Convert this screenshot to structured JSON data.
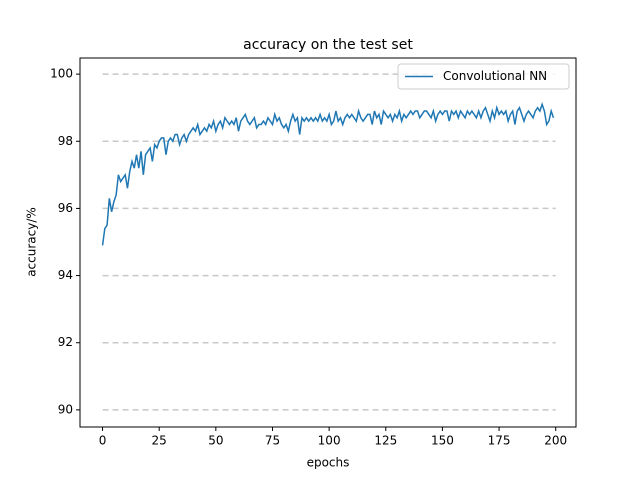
{
  "chart_data": {
    "type": "line",
    "title": "accuracy on the test set",
    "xlabel": "epochs",
    "ylabel": "accuracy/%",
    "x": [
      0,
      1,
      2,
      3,
      4,
      5,
      6,
      7,
      8,
      9,
      10,
      11,
      12,
      13,
      14,
      15,
      16,
      17,
      18,
      19,
      20,
      21,
      22,
      23,
      24,
      25,
      26,
      27,
      28,
      29,
      30,
      31,
      32,
      33,
      34,
      35,
      36,
      37,
      38,
      39,
      40,
      41,
      42,
      43,
      44,
      45,
      46,
      47,
      48,
      49,
      50,
      51,
      52,
      53,
      54,
      55,
      56,
      57,
      58,
      59,
      60,
      61,
      62,
      63,
      64,
      65,
      66,
      67,
      68,
      69,
      70,
      71,
      72,
      73,
      74,
      75,
      76,
      77,
      78,
      79,
      80,
      81,
      82,
      83,
      84,
      85,
      86,
      87,
      88,
      89,
      90,
      91,
      92,
      93,
      94,
      95,
      96,
      97,
      98,
      99,
      100,
      101,
      102,
      103,
      104,
      105,
      106,
      107,
      108,
      109,
      110,
      111,
      112,
      113,
      114,
      115,
      116,
      117,
      118,
      119,
      120,
      121,
      122,
      123,
      124,
      125,
      126,
      127,
      128,
      129,
      130,
      131,
      132,
      133,
      134,
      135,
      136,
      137,
      138,
      139,
      140,
      141,
      142,
      143,
      144,
      145,
      146,
      147,
      148,
      149,
      150,
      151,
      152,
      153,
      154,
      155,
      156,
      157,
      158,
      159,
      160,
      161,
      162,
      163,
      164,
      165,
      166,
      167,
      168,
      169,
      170,
      171,
      172,
      173,
      174,
      175,
      176,
      177,
      178,
      179,
      180,
      181,
      182,
      183,
      184,
      185,
      186,
      187,
      188,
      189,
      190,
      191,
      192,
      193,
      194,
      195,
      196,
      197,
      198,
      199
    ],
    "series": [
      {
        "name": "Convolutional NN",
        "color": "#1f77b4",
        "values": [
          94.9,
          95.4,
          95.5,
          96.3,
          95.9,
          96.2,
          96.4,
          97.0,
          96.8,
          96.9,
          97.0,
          96.6,
          97.1,
          97.4,
          97.2,
          97.6,
          97.2,
          97.7,
          97.0,
          97.6,
          97.7,
          97.8,
          97.4,
          97.9,
          97.8,
          98.0,
          98.1,
          98.1,
          97.6,
          98.0,
          98.1,
          98.0,
          98.2,
          98.2,
          97.9,
          98.1,
          98.2,
          98.0,
          98.2,
          98.3,
          98.4,
          98.3,
          98.5,
          98.2,
          98.3,
          98.4,
          98.3,
          98.5,
          98.4,
          98.6,
          98.3,
          98.5,
          98.6,
          98.4,
          98.7,
          98.6,
          98.5,
          98.6,
          98.5,
          98.7,
          98.3,
          98.6,
          98.7,
          98.8,
          98.6,
          98.5,
          98.6,
          98.7,
          98.4,
          98.5,
          98.5,
          98.6,
          98.5,
          98.7,
          98.6,
          98.5,
          98.8,
          98.6,
          98.7,
          98.5,
          98.4,
          98.5,
          98.3,
          98.6,
          98.8,
          98.6,
          98.7,
          98.2,
          98.7,
          98.6,
          98.7,
          98.6,
          98.7,
          98.6,
          98.7,
          98.6,
          98.8,
          98.6,
          98.7,
          98.6,
          98.8,
          98.5,
          98.6,
          98.9,
          98.6,
          98.7,
          98.5,
          98.7,
          98.8,
          98.7,
          98.8,
          98.7,
          98.6,
          98.9,
          98.7,
          98.6,
          98.7,
          98.8,
          98.8,
          98.5,
          98.9,
          98.7,
          98.8,
          98.5,
          98.9,
          98.8,
          98.7,
          98.8,
          98.6,
          98.8,
          98.7,
          98.9,
          98.6,
          98.8,
          98.7,
          98.8,
          98.9,
          98.8,
          98.9,
          98.9,
          98.7,
          98.8,
          98.9,
          98.9,
          98.8,
          98.7,
          98.9,
          98.6,
          98.8,
          98.9,
          98.8,
          98.9,
          98.9,
          98.6,
          98.9,
          98.8,
          98.9,
          98.7,
          98.9,
          98.8,
          98.7,
          98.9,
          98.8,
          98.9,
          98.8,
          98.7,
          98.9,
          98.7,
          98.9,
          99.0,
          98.8,
          98.6,
          98.9,
          98.7,
          99.0,
          98.8,
          98.9,
          98.8,
          98.9,
          98.6,
          98.8,
          98.9,
          98.5,
          98.9,
          99.0,
          98.8,
          98.6,
          98.8,
          98.9,
          98.8,
          98.7,
          98.9,
          99.0,
          98.9,
          99.1,
          98.9,
          98.5,
          98.6,
          98.9,
          98.7
        ]
      }
    ],
    "xlim": [
      -9.95,
      208.95
    ],
    "xticks": [
      0,
      25,
      50,
      75,
      100,
      125,
      150,
      175,
      200
    ],
    "ylim": [
      89.49,
      100.48
    ],
    "yticks": [
      90,
      92,
      94,
      96,
      98,
      100
    ],
    "grid": true,
    "legend": "upper right"
  }
}
